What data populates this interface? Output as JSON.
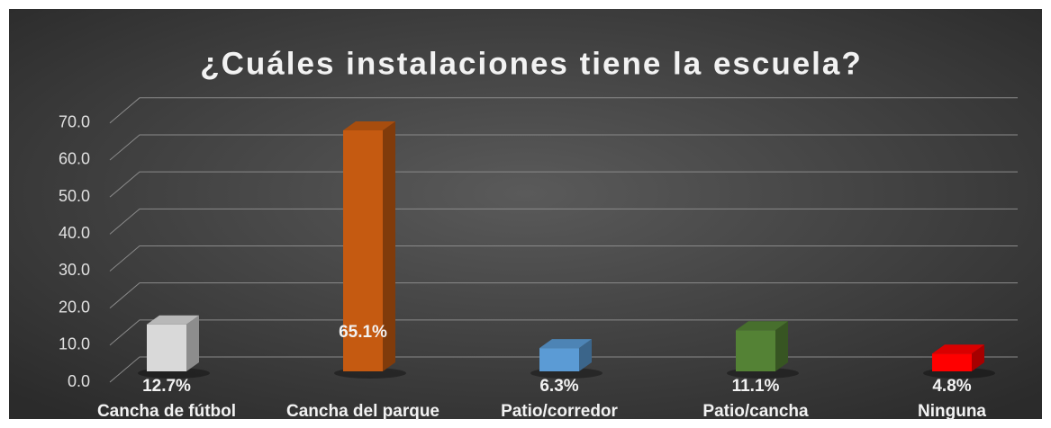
{
  "chart_data": {
    "type": "bar3d",
    "title": "¿Cuáles instalaciones tiene la escuela?",
    "categories": [
      "Cancha de fútbol",
      "Cancha del parque",
      "Patio/corredor",
      "Patio/cancha",
      "Ninguna"
    ],
    "values": [
      12.7,
      65.1,
      6.3,
      11.1,
      4.8
    ],
    "value_labels": [
      "12.7%",
      "65.1%",
      "6.3%",
      "11.1%",
      "4.8%"
    ],
    "colors": [
      "#d9d9d9",
      "#c55a11",
      "#5b9bd5",
      "#548235",
      "#ff0000"
    ],
    "ylim": [
      0,
      70
    ],
    "yticks": [
      {
        "value": 0,
        "label": "0.0"
      },
      {
        "value": 10,
        "label": "10.0"
      },
      {
        "value": 20,
        "label": "20.0"
      },
      {
        "value": 30,
        "label": "30.0"
      },
      {
        "value": 40,
        "label": "40.0"
      },
      {
        "value": 50,
        "label": "50.0"
      },
      {
        "value": 60,
        "label": "60.0"
      },
      {
        "value": 70,
        "label": "70.0"
      }
    ],
    "grid": true
  }
}
